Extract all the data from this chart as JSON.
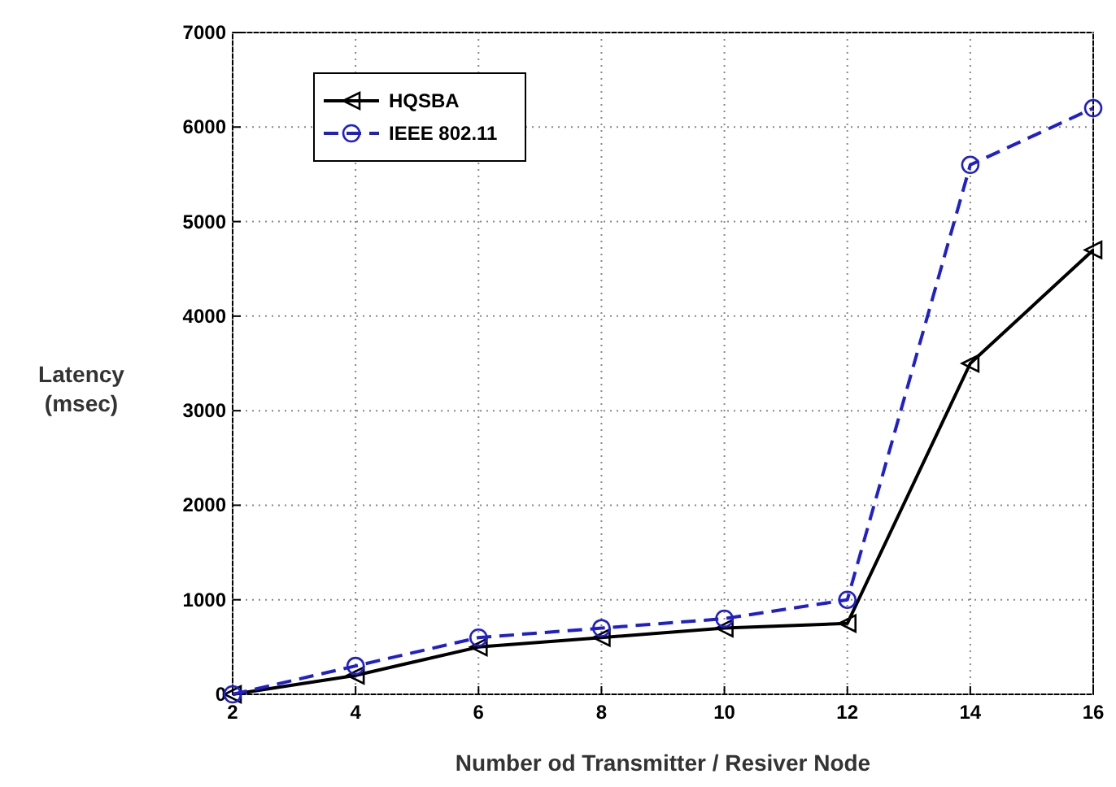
{
  "chart_data": {
    "type": "line",
    "xlabel": "Number od Transmitter / Resiver Node",
    "ylabel": "Latency\n(msec)",
    "x": [
      2,
      4,
      6,
      8,
      10,
      12,
      14,
      16
    ],
    "series": [
      {
        "name": "HQSBA",
        "color": "#000000",
        "marker": "triangle",
        "line_style": "solid",
        "values": [
          0,
          200,
          500,
          600,
          700,
          750,
          3500,
          4700
        ]
      },
      {
        "name": "IEEE 802.11",
        "color": "#1f1fd0",
        "marker": "circle",
        "line_style": "dashed",
        "values": [
          0,
          300,
          600,
          700,
          800,
          1000,
          5600,
          6200
        ]
      }
    ],
    "xlim": [
      2,
      16
    ],
    "xticks": [
      2,
      4,
      6,
      8,
      10,
      12,
      14,
      16
    ],
    "ylim": [
      0,
      7000
    ],
    "yticks": [
      0,
      1000,
      2000,
      3000,
      4000,
      5000,
      6000,
      7000
    ],
    "grid": true,
    "legend": "top left"
  }
}
